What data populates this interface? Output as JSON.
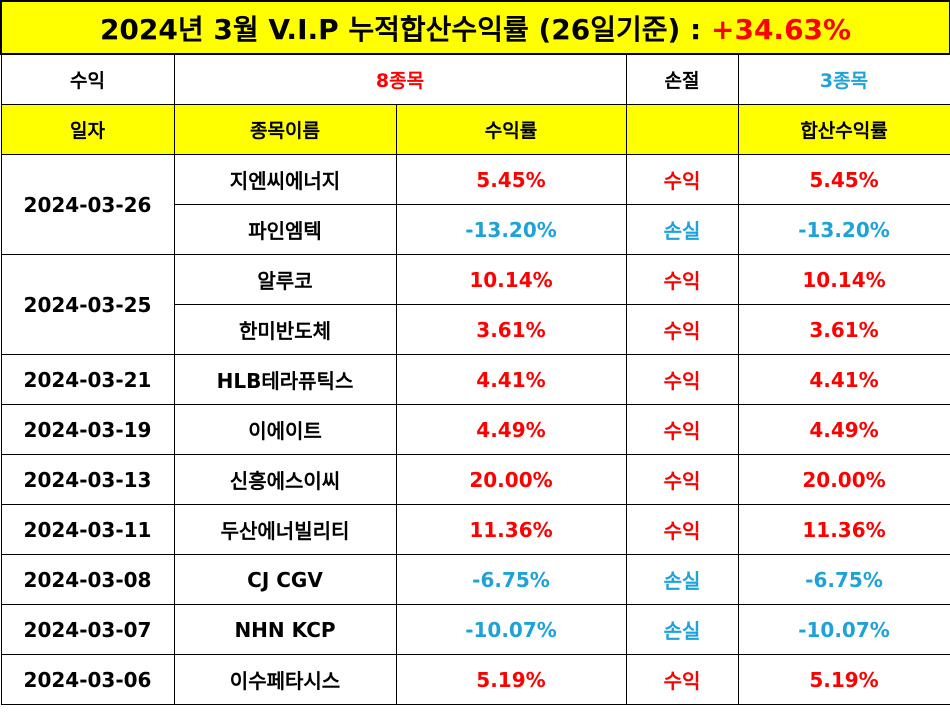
{
  "title": {
    "text": "2024년 3월 V.I.P 누적합산수익률 (26일기준) : ",
    "value": "+34.63%",
    "value_color": "#ff0000"
  },
  "summary": {
    "profit_label": "수익",
    "profit_count": "8종목",
    "loss_label": "손절",
    "loss_count": "3종목"
  },
  "headers": [
    "일자",
    "종목이름",
    "수익률",
    "",
    "합산수익률"
  ],
  "colors": {
    "profit": "#ff0000",
    "loss": "#1fa2d8",
    "header_bg": "#ffff00"
  },
  "groups": [
    {
      "date": "2024-03-26",
      "rows": [
        {
          "name": "지엔씨에너지",
          "rate": "5.45%",
          "status": "수익",
          "sum": "5.45%",
          "type": "profit"
        },
        {
          "name": "파인엠텍",
          "rate": "-13.20%",
          "status": "손실",
          "sum": "-13.20%",
          "type": "loss"
        }
      ]
    },
    {
      "date": "2024-03-25",
      "rows": [
        {
          "name": "알루코",
          "rate": "10.14%",
          "status": "수익",
          "sum": "10.14%",
          "type": "profit"
        },
        {
          "name": "한미반도체",
          "rate": "3.61%",
          "status": "수익",
          "sum": "3.61%",
          "type": "profit"
        }
      ]
    },
    {
      "date": "2024-03-21",
      "rows": [
        {
          "name": "HLB테라퓨틱스",
          "rate": "4.41%",
          "status": "수익",
          "sum": "4.41%",
          "type": "profit"
        }
      ]
    },
    {
      "date": "2024-03-19",
      "rows": [
        {
          "name": "이에이트",
          "rate": "4.49%",
          "status": "수익",
          "sum": "4.49%",
          "type": "profit"
        }
      ]
    },
    {
      "date": "2024-03-13",
      "rows": [
        {
          "name": "신흥에스이씨",
          "rate": "20.00%",
          "status": "수익",
          "sum": "20.00%",
          "type": "profit"
        }
      ]
    },
    {
      "date": "2024-03-11",
      "rows": [
        {
          "name": "두산에너빌리티",
          "rate": "11.36%",
          "status": "수익",
          "sum": "11.36%",
          "type": "profit"
        }
      ]
    },
    {
      "date": "2024-03-08",
      "rows": [
        {
          "name": "CJ CGV",
          "rate": "-6.75%",
          "status": "손실",
          "sum": "-6.75%",
          "type": "loss"
        }
      ]
    },
    {
      "date": "2024-03-07",
      "rows": [
        {
          "name": "NHN KCP",
          "rate": "-10.07%",
          "status": "손실",
          "sum": "-10.07%",
          "type": "loss"
        }
      ]
    },
    {
      "date": "2024-03-06",
      "rows": [
        {
          "name": "이수페타시스",
          "rate": "5.19%",
          "status": "수익",
          "sum": "5.19%",
          "type": "profit"
        }
      ]
    }
  ]
}
